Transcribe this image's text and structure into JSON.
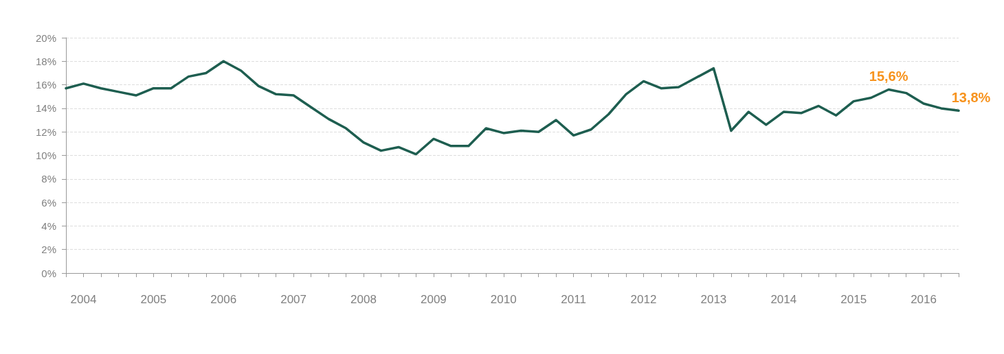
{
  "chart_data": {
    "type": "line",
    "categories": [
      null,
      "2004",
      null,
      null,
      null,
      "2005",
      null,
      null,
      null,
      "2006",
      null,
      null,
      null,
      "2007",
      null,
      null,
      null,
      "2008",
      null,
      null,
      null,
      "2009",
      null,
      null,
      null,
      "2010",
      null,
      null,
      null,
      "2011",
      null,
      null,
      null,
      "2012",
      null,
      null,
      null,
      "2013",
      null,
      null,
      null,
      "2014",
      null,
      null,
      null,
      "2015",
      null,
      null,
      null,
      "2016",
      null,
      null
    ],
    "series": [
      {
        "color": "#1e5e50",
        "values": [
          15.7,
          16.1,
          15.7,
          15.4,
          15.1,
          15.7,
          15.7,
          16.7,
          17.0,
          18.0,
          17.2,
          15.9,
          15.2,
          15.1,
          14.1,
          13.1,
          12.3,
          11.1,
          10.4,
          10.7,
          10.1,
          11.4,
          10.8,
          10.8,
          12.3,
          11.9,
          12.1,
          12.0,
          13.0,
          11.7,
          12.2,
          13.5,
          15.2,
          16.3,
          15.7,
          15.8,
          16.6,
          17.4,
          12.1,
          13.7,
          12.6,
          13.7,
          13.6,
          14.2,
          13.4,
          14.6,
          14.9,
          15.6,
          15.3,
          14.4,
          14.0,
          13.8
        ],
        "value_labels": [
          null,
          null,
          null,
          null,
          null,
          null,
          null,
          null,
          null,
          null,
          null,
          null,
          null,
          null,
          null,
          null,
          null,
          null,
          null,
          null,
          null,
          null,
          null,
          null,
          null,
          null,
          null,
          null,
          null,
          null,
          null,
          null,
          null,
          null,
          null,
          null,
          null,
          null,
          null,
          null,
          null,
          null,
          null,
          null,
          null,
          null,
          null,
          "15,6%",
          null,
          null,
          null,
          "13,8%"
        ]
      }
    ],
    "ylim": [
      0,
      20
    ],
    "yticks": [
      {
        "value": 0,
        "label": "0%"
      },
      {
        "value": 2,
        "label": "2%"
      },
      {
        "value": 4,
        "label": "4%"
      },
      {
        "value": 6,
        "label": "6%"
      },
      {
        "value": 8,
        "label": "8%"
      },
      {
        "value": 10,
        "label": "10%"
      },
      {
        "value": 12,
        "label": "12%"
      },
      {
        "value": 14,
        "label": "14%"
      },
      {
        "value": 16,
        "label": "16%"
      },
      {
        "value": 18,
        "label": "18%"
      },
      {
        "value": 20,
        "label": "20%"
      }
    ],
    "grid": "y",
    "line_style": "solid",
    "marker": "none"
  }
}
